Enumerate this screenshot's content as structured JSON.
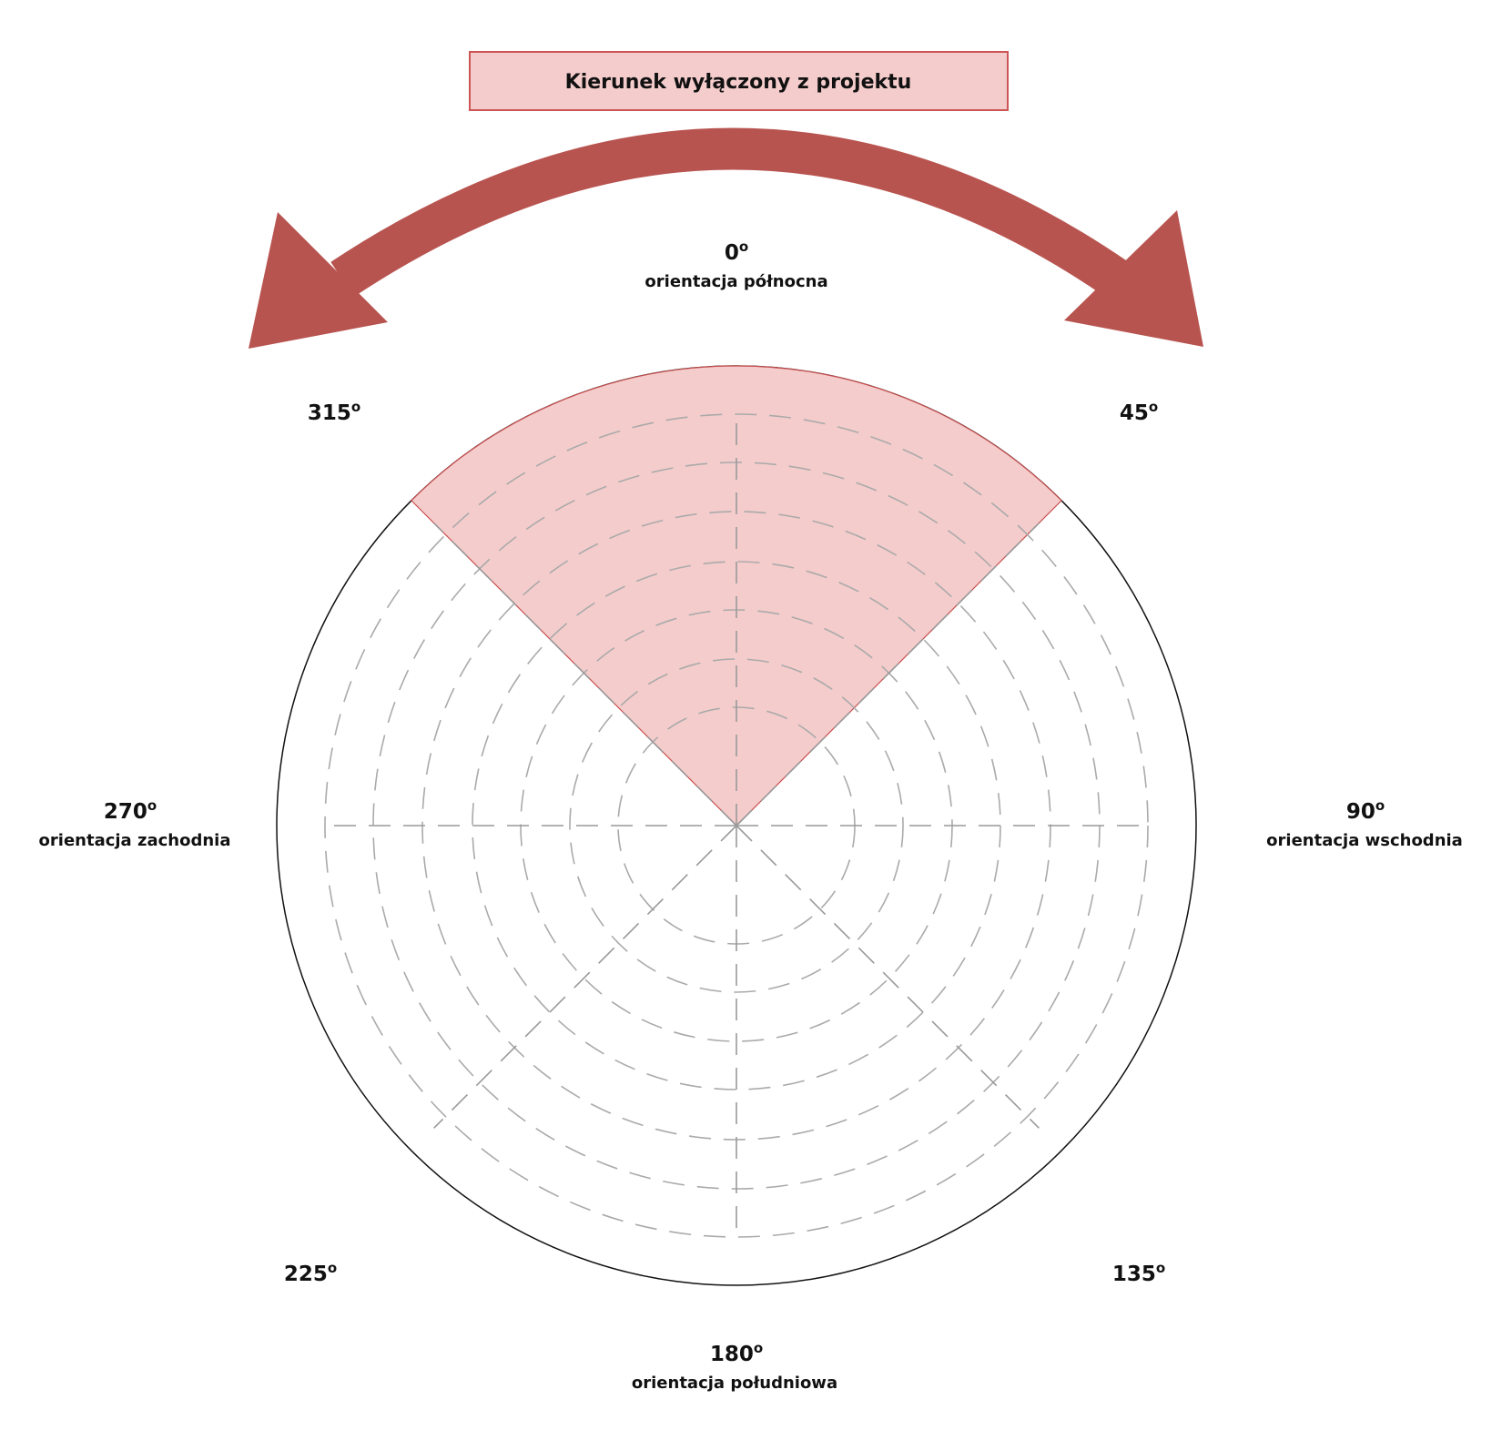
{
  "legend": {
    "label": "Kierunek wyłączony z projektu"
  },
  "degree_symbol": "o",
  "directions": [
    {
      "angle": "0",
      "name": "orientacja północna"
    },
    {
      "angle": "45"
    },
    {
      "angle": "90",
      "name": "orientacja wschodnia"
    },
    {
      "angle": "135"
    },
    {
      "angle": "180",
      "name": "orientacja południowa"
    },
    {
      "angle": "225"
    },
    {
      "angle": "270",
      "name": "orientacja zachodnia"
    },
    {
      "angle": "315"
    }
  ],
  "excluded_sector": {
    "from_deg": 315,
    "to_deg": 45
  },
  "colors": {
    "sector_fill": "#f5cccc",
    "sector_edge": "#c85050",
    "arrow": "#b85450",
    "legend_border": "#cc5555"
  }
}
